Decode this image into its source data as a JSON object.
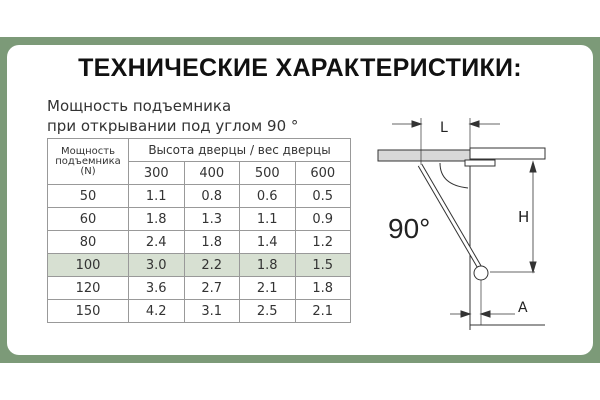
{
  "title": "ТЕХНИЧЕСКИЕ ХАРАКТЕРИСТИКИ:",
  "subtitle": {
    "line1": "Мощность подъемника",
    "line2": "при открывании под углом 90  °"
  },
  "table": {
    "row_header": [
      "Мощность",
      "подъемника",
      "(N)"
    ],
    "group_header": "Высота дверцы / вес дверцы",
    "columns": [
      "300",
      "400",
      "500",
      "600"
    ],
    "rows": [
      {
        "force": "50",
        "values": [
          "1.1",
          "0.8",
          "0.6",
          "0.5"
        ]
      },
      {
        "force": "60",
        "values": [
          "1.8",
          "1.3",
          "1.1",
          "0.9"
        ]
      },
      {
        "force": "80",
        "values": [
          "2.4",
          "1.8",
          "1.4",
          "1.2"
        ]
      },
      {
        "force": "100",
        "values": [
          "3.0",
          "2.2",
          "1.8",
          "1.5"
        ],
        "highlighted": true
      },
      {
        "force": "120",
        "values": [
          "3.6",
          "2.7",
          "2.1",
          "1.8"
        ]
      },
      {
        "force": "150",
        "values": [
          "4.2",
          "3.1",
          "2.5",
          "2.1"
        ]
      }
    ]
  },
  "diagram": {
    "angle": "90°",
    "label_L": "L",
    "label_H": "H",
    "label_A": "A"
  },
  "colors": {
    "frame": "#7c9a78",
    "highlight_row": "#d7e0d2"
  }
}
